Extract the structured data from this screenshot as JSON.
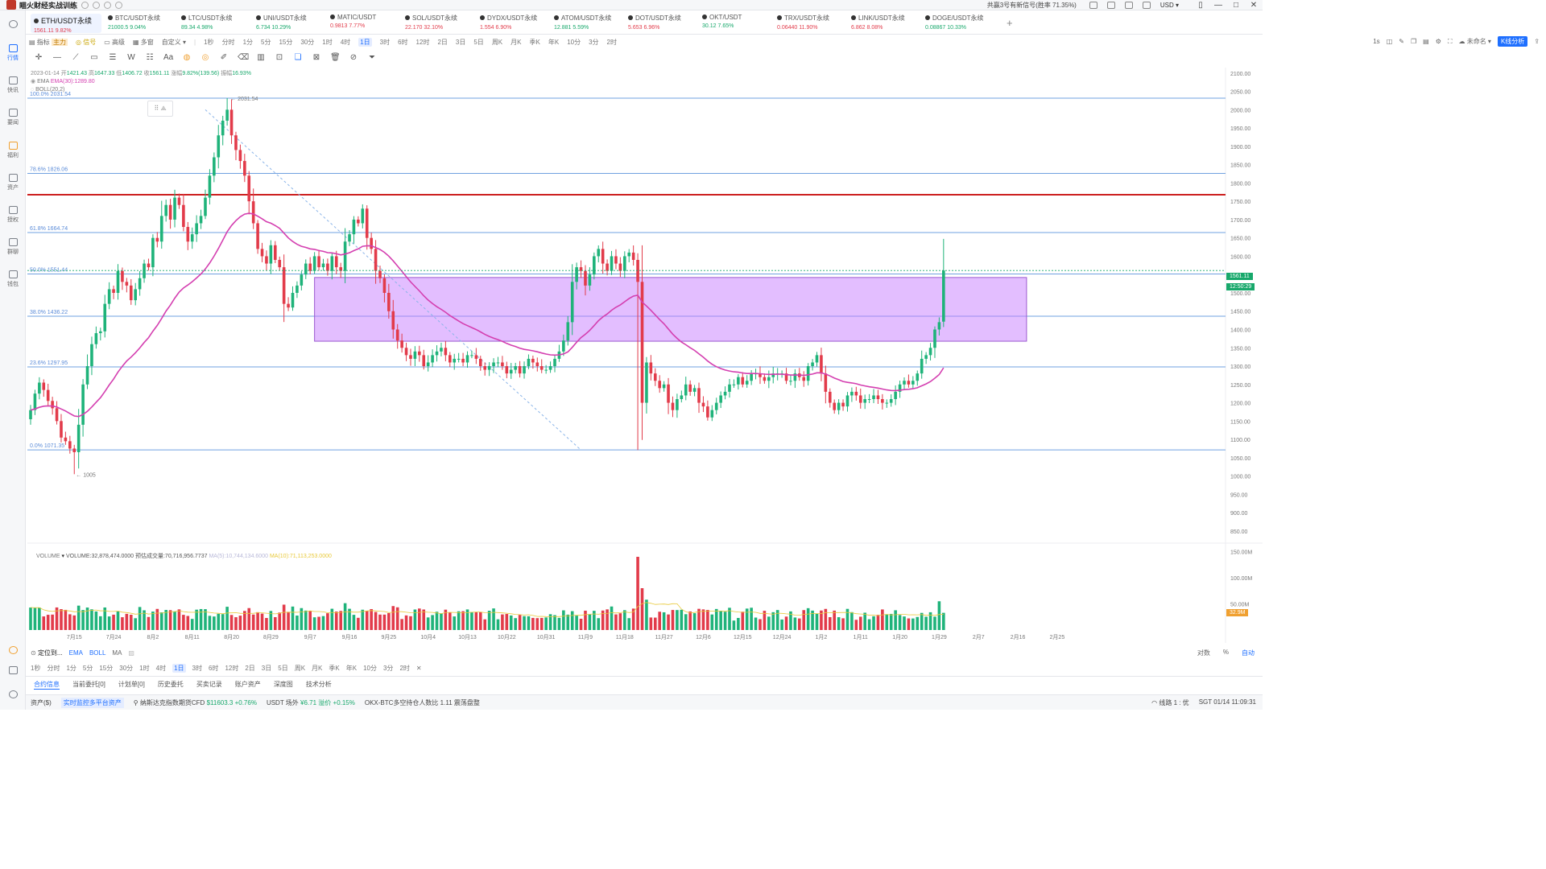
{
  "app": {
    "title": "瞄火财经实战训练",
    "signal_text": "共赢3号有新信号(胜率 71.35%)",
    "currency": "USD ▾"
  },
  "sidebar": {
    "items": [
      {
        "label": "行情",
        "active": true
      },
      {
        "label": "快讯"
      },
      {
        "label": "要闻"
      },
      {
        "label": "福利"
      },
      {
        "label": "资产"
      },
      {
        "label": "授权"
      },
      {
        "label": "群聊"
      },
      {
        "label": "钱包"
      }
    ]
  },
  "tabs": [
    {
      "name": "ETH/USDT永续",
      "price": "1561.11",
      "change": "9.82%"
    },
    {
      "name": "BTC/USDT永续",
      "price": "21000.5",
      "change": "9.04%"
    },
    {
      "name": "LTC/USDT永续",
      "price": "89.34",
      "change": "4.98%"
    },
    {
      "name": "UNI/USDT永续",
      "price": "6.734",
      "change": "10.29%"
    },
    {
      "name": "MATIC/USDT",
      "price": "0.9813",
      "change": "7.77%"
    },
    {
      "name": "SOL/USDT永续",
      "price": "22.170",
      "change": "32.10%"
    },
    {
      "name": "DYDX/USDT永续",
      "price": "1.554",
      "change": "6.90%"
    },
    {
      "name": "ATOM/USDT永续",
      "price": "12.881",
      "change": "5.59%"
    },
    {
      "name": "DOT/USDT永续",
      "price": "5.653",
      "change": "6.96%"
    },
    {
      "name": "OKT/USDT",
      "price": "30.12",
      "change": "7.65%"
    },
    {
      "name": "TRX/USDT永续",
      "price": "0.06440",
      "change": "11.90%"
    },
    {
      "name": "LINK/USDT永续",
      "price": "6.862",
      "change": "8.08%"
    },
    {
      "name": "DOGE/USDT永续",
      "price": "0.08867",
      "change": "10.33%"
    }
  ],
  "toolbar": {
    "indicator": "指标",
    "indicator_tag": "主力",
    "signal": "信号",
    "advanced": "高级",
    "multi": "多窗",
    "custom": "自定义",
    "timeframes": [
      "1秒",
      "分时",
      "1分",
      "5分",
      "15分",
      "30分",
      "1时",
      "4时",
      "1日",
      "3时",
      "6时",
      "12时",
      "2日",
      "3日",
      "5日",
      "周K",
      "月K",
      "季K",
      "年K",
      "10分",
      "3分",
      "2时"
    ],
    "selected_tf": "1日",
    "right_items": [
      "1s",
      "未命名"
    ],
    "kline_btn": "K线分析"
  },
  "info": {
    "date": "2023-01-14",
    "open_label": "开",
    "open": "1421.43",
    "high_label": "高",
    "high": "1647.33",
    "low_label": "低",
    "low": "1406.72",
    "close_label": "收",
    "close": "1561.11",
    "change_label": "涨幅",
    "change": "9.82%(139.56)",
    "amp_label": "振幅",
    "amp": "16.93%",
    "ema_label": "EMA",
    "ema_value": "EMA(30):1289.80",
    "boll_label": "BOLL(20,2)"
  },
  "fib": [
    {
      "label": "100.0% 2031.54",
      "price": 2031.54
    },
    {
      "label": "78.6% 1826.06",
      "price": 1826.06
    },
    {
      "label": "61.8% 1664.74",
      "price": 1664.74
    },
    {
      "label": "50.0% 1551.44",
      "price": 1551.44
    },
    {
      "label": "38.0% 1436.22",
      "price": 1436.22
    },
    {
      "label": "23.6% 1297.95",
      "price": 1297.95
    },
    {
      "label": "0.0% 1071.35",
      "price": 1071.35
    }
  ],
  "annotations": {
    "high_mark": "2031.54",
    "low_mark": "1005",
    "price_badge": "1561.11",
    "time_badge": "12:50:29",
    "vol_badge": "32.9M"
  },
  "colors": {
    "up": "#1fb37a",
    "down": "#e23b4a",
    "ema": "#d43fb0",
    "fib": "#6fa0e0",
    "zone": "#c77dff",
    "resistance": "#cc1f1f",
    "accent": "#1e6fff"
  },
  "chart_data": {
    "type": "candlestick",
    "price_axis": [
      "2100.00",
      "2050.00",
      "2000.00",
      "1950.00",
      "1900.00",
      "1850.00",
      "1800.00",
      "1750.00",
      "1700.00",
      "1650.00",
      "1600.00",
      "1550.00",
      "1500.00",
      "1450.00",
      "1400.00",
      "1350.00",
      "1300.00",
      "1250.00",
      "1200.00",
      "1150.00",
      "1100.00",
      "1050.00",
      "1000.00",
      "950.00",
      "900.00",
      "850.00"
    ],
    "ylim": [
      830,
      2115
    ],
    "x_ticks": [
      "7月15",
      "7月24",
      "8月2",
      "8月11",
      "8月20",
      "8月29",
      "9月7",
      "9月16",
      "9月25",
      "10月4",
      "10月13",
      "10月22",
      "10月31",
      "11月9",
      "11月18",
      "11月27",
      "12月6",
      "12月15",
      "12月24",
      "1月2",
      "1月11",
      "1月20",
      "1月29",
      "2月7",
      "2月16",
      "2月25"
    ],
    "resistance_price": 1768,
    "zone": {
      "top": 1542,
      "bottom": 1368,
      "start_index": 65,
      "end_index": 228
    },
    "trendline": {
      "from": {
        "index": 40,
        "price": 2000
      },
      "to": {
        "index": 126,
        "price": 1071
      }
    },
    "closes": [
      1180,
      1225,
      1255,
      1235,
      1205,
      1185,
      1150,
      1105,
      1095,
      1075,
      1065,
      1140,
      1250,
      1300,
      1360,
      1390,
      1395,
      1470,
      1510,
      1500,
      1560,
      1530,
      1520,
      1480,
      1510,
      1540,
      1580,
      1570,
      1650,
      1640,
      1710,
      1740,
      1700,
      1760,
      1740,
      1680,
      1640,
      1660,
      1690,
      1710,
      1760,
      1820,
      1870,
      1930,
      1970,
      2000,
      1930,
      1890,
      1860,
      1820,
      1750,
      1690,
      1620,
      1600,
      1580,
      1630,
      1590,
      1570,
      1470,
      1460,
      1500,
      1520,
      1550,
      1580,
      1560,
      1600,
      1570,
      1580,
      1560,
      1600,
      1570,
      1560,
      1640,
      1660,
      1700,
      1690,
      1730,
      1650,
      1620,
      1560,
      1540,
      1500,
      1450,
      1400,
      1370,
      1350,
      1330,
      1320,
      1340,
      1330,
      1300,
      1310,
      1330,
      1340,
      1350,
      1330,
      1310,
      1320,
      1320,
      1310,
      1330,
      1330,
      1320,
      1300,
      1290,
      1300,
      1310,
      1310,
      1300,
      1280,
      1290,
      1300,
      1280,
      1300,
      1320,
      1310,
      1300,
      1290,
      1290,
      1300,
      1320,
      1340,
      1370,
      1420,
      1530,
      1570,
      1560,
      1520,
      1550,
      1600,
      1620,
      1580,
      1560,
      1600,
      1580,
      1560,
      1600,
      1610,
      1590,
      1530,
      1200,
      1310,
      1280,
      1260,
      1240,
      1250,
      1200,
      1180,
      1210,
      1220,
      1250,
      1230,
      1240,
      1200,
      1190,
      1160,
      1180,
      1200,
      1220,
      1230,
      1250,
      1250,
      1270,
      1250,
      1260,
      1280,
      1280,
      1270,
      1260,
      1270,
      1280,
      1280,
      1280,
      1260,
      1260,
      1280,
      1270,
      1260,
      1300,
      1310,
      1330,
      1280,
      1230,
      1200,
      1180,
      1200,
      1190,
      1220,
      1230,
      1220,
      1200,
      1210,
      1210,
      1220,
      1210,
      1200,
      1200,
      1210,
      1230,
      1250,
      1260,
      1250,
      1260,
      1280,
      1320,
      1330,
      1350,
      1400,
      1420,
      1561
    ],
    "volume_axis": [
      "150.00M",
      "100.00M",
      "50.00M"
    ],
    "volume_legend": {
      "label": "VOLUME",
      "volume": "VOLUME:32,878,474.0000",
      "forecast": "预估成交量:70,716,956.7737",
      "ma5": "MA(5):10,744,134.6000",
      "ma10": "MA(10):71,113,253.0000"
    }
  },
  "bottom": {
    "locate": "定位到...",
    "tags": [
      "EMA",
      "BOLL",
      "MA"
    ],
    "right": [
      "对数",
      "%",
      "自动"
    ],
    "timeframes": [
      "1秒",
      "分时",
      "1分",
      "5分",
      "15分",
      "30分",
      "1时",
      "4时",
      "1日",
      "3时",
      "6时",
      "12时",
      "2日",
      "3日",
      "5日",
      "周K",
      "月K",
      "季K",
      "年K",
      "10分",
      "3分",
      "2时"
    ],
    "selected_tf": "1日",
    "close": "✕"
  },
  "panel_tabs": [
    "合约信息",
    "当前委托[0]",
    "计划单[0]",
    "历史委托",
    "买卖记录",
    "账户资产",
    "深度图",
    "技术分析"
  ],
  "status": {
    "assets": "资产($)",
    "monitor": "实时监控多平台资产",
    "nasdaq": "纳斯达克指数期货CFD",
    "nasdaq_val": "$11603.3",
    "nasdaq_chg": "+0.76%",
    "usdt": "USDT 场外",
    "usdt_val": "¥6.71",
    "usdt_prem": "溢价 +0.15%",
    "okx": "OKX-BTC多空持仓人数比",
    "okx_val": "1.11",
    "okx_tag": "震荡盘整",
    "line": "线路 1 : 优",
    "time": "SGT 01/14 11:09:31"
  }
}
